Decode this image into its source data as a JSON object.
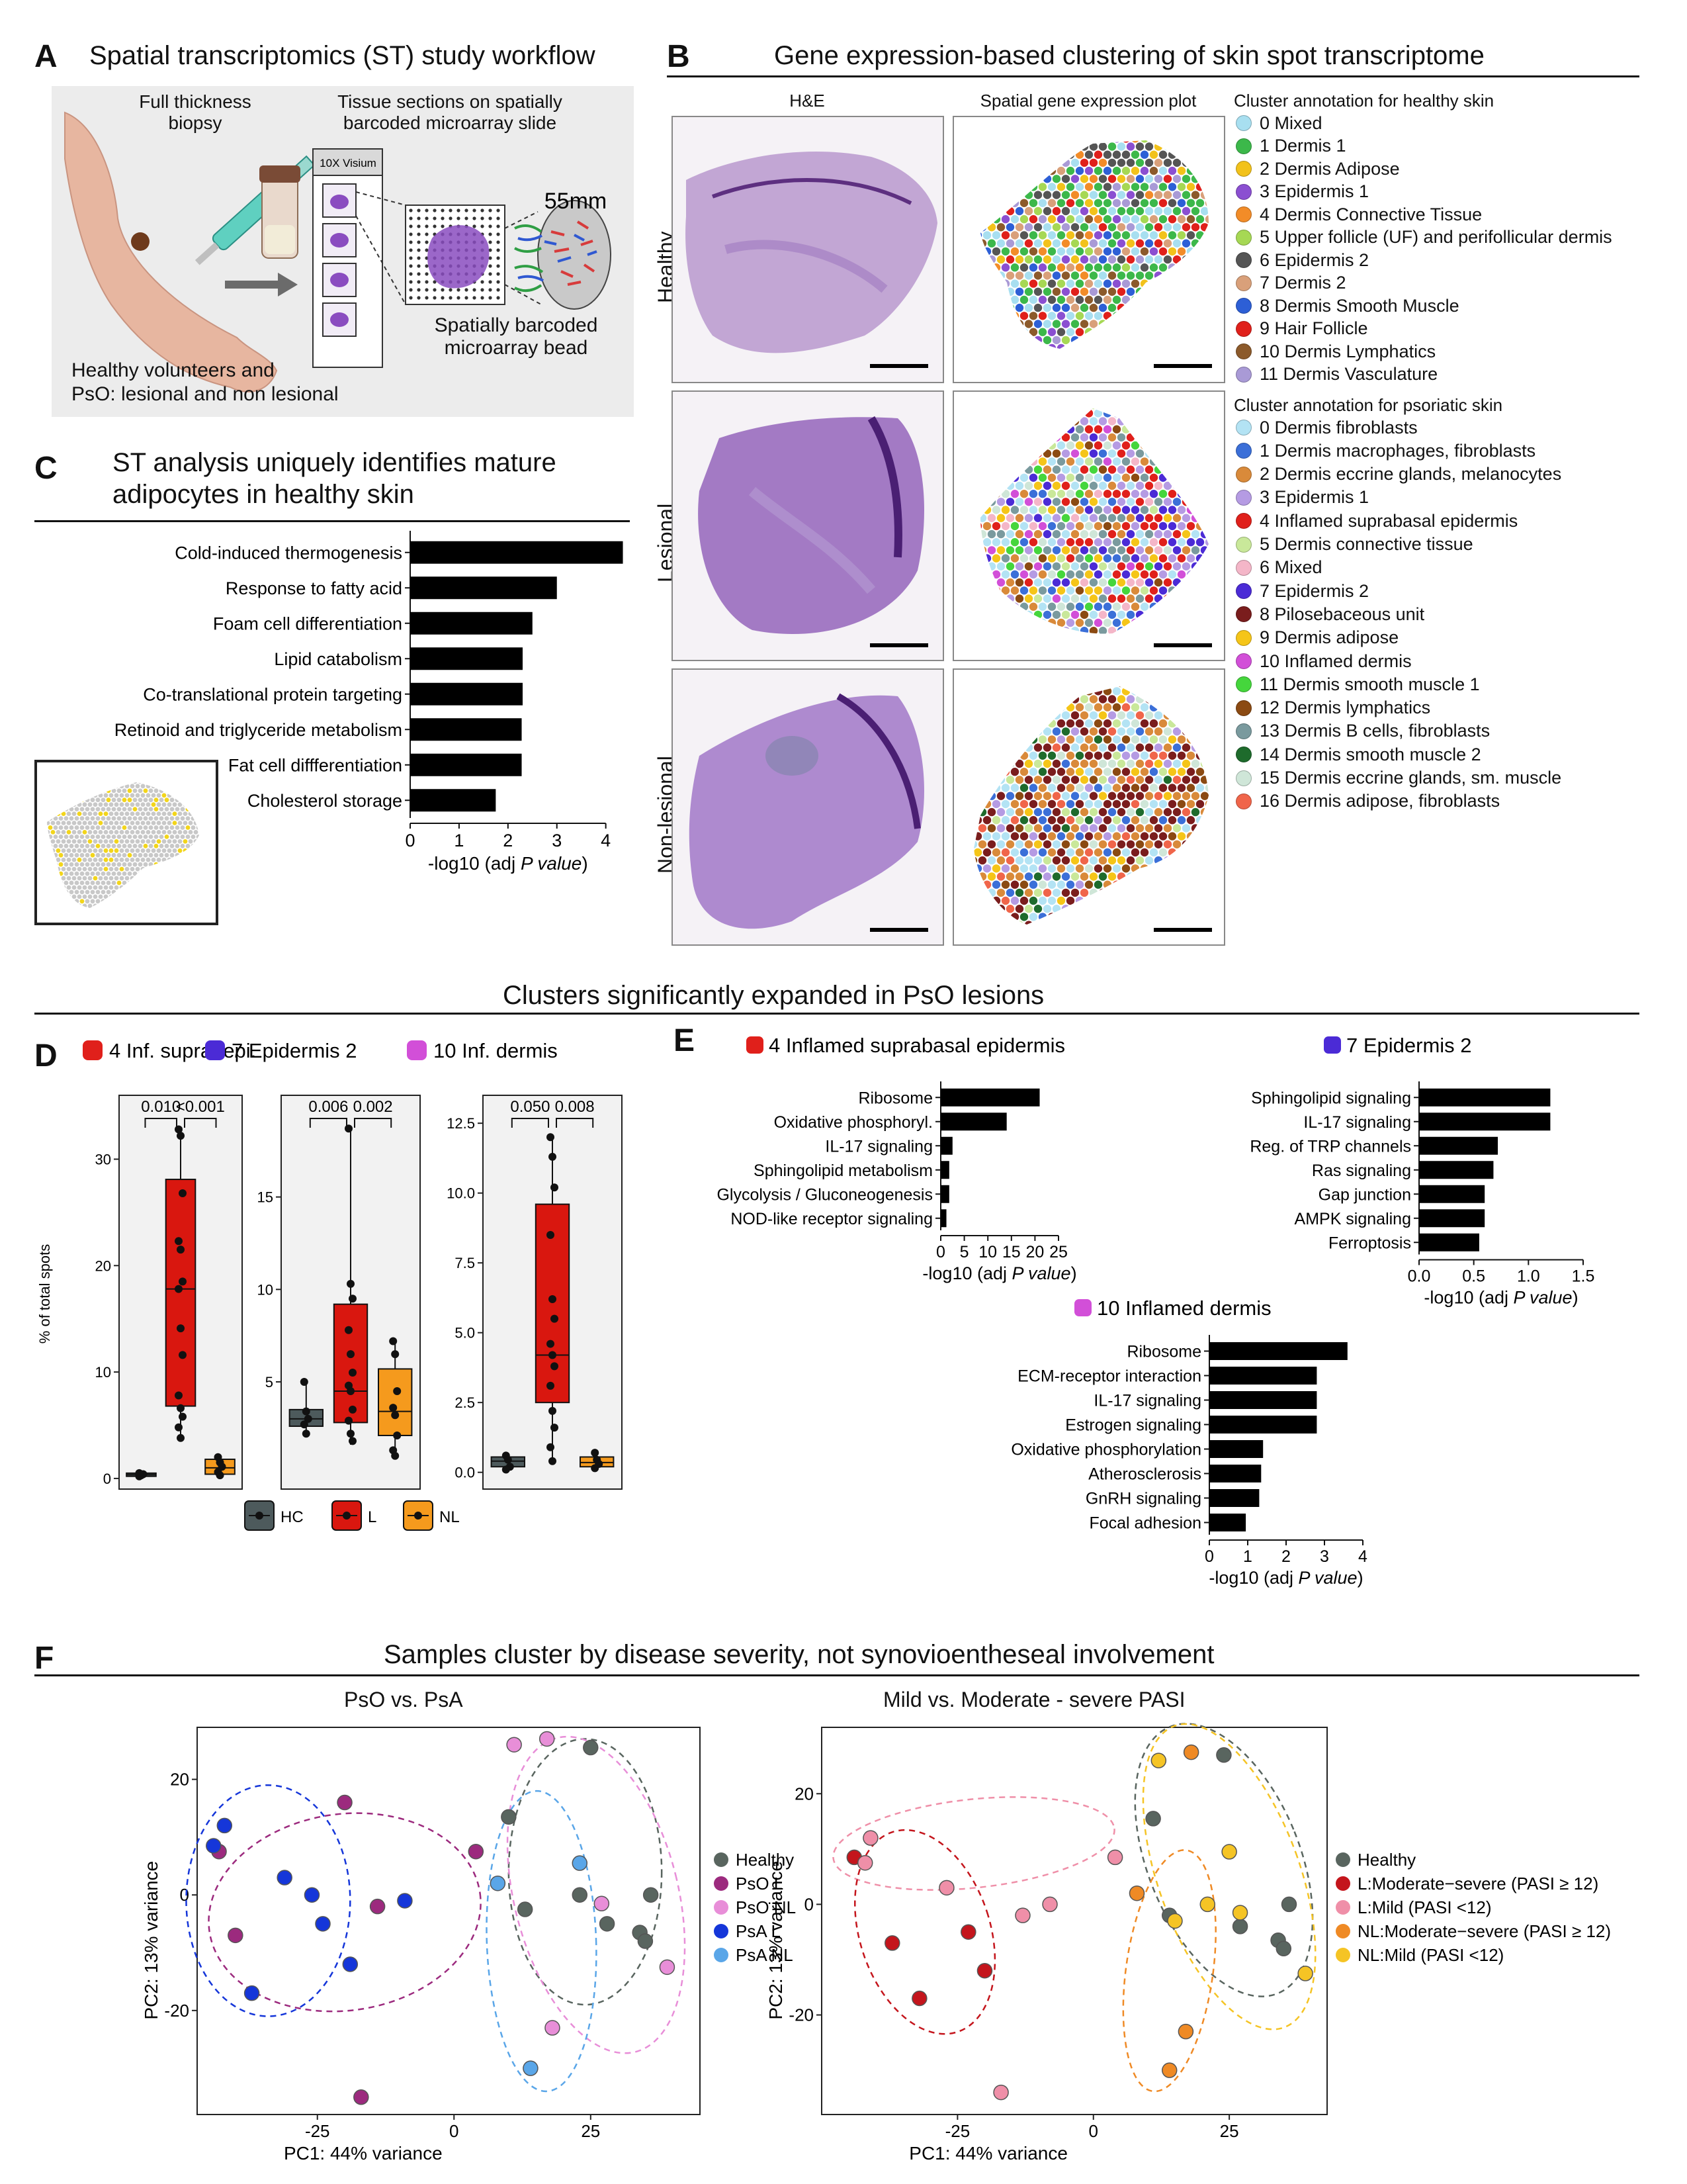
{
  "panelA": {
    "letter": "A",
    "title": "Spatial transcriptomics (ST) study workflow",
    "biopsy_label": "Full thickness\nbiopsy",
    "sections_label": "Tissue sections on spatially\nbarcoded microarray slide",
    "visium_label": "10X Visium",
    "size_label": "55mm",
    "bead_label": "Spatially barcoded\nmicroarray bead",
    "cohort_label": "Healthy volunteers and\nPsO: lesional and non lesional"
  },
  "panelB": {
    "letter": "B",
    "title": "Gene expression-based clustering of skin spot transcriptome",
    "col_he": "H&E",
    "col_spatial": "Spatial gene expression plot",
    "rows": [
      "Healthy",
      "Lesional",
      "Non-lesional"
    ],
    "healthy_legend_title": "Cluster annotation for healthy skin",
    "healthy_clusters": [
      {
        "label": "0 Mixed",
        "color": "#a8dff0"
      },
      {
        "label": "1 Dermis 1",
        "color": "#3cb84a"
      },
      {
        "label": "2 Dermis Adipose",
        "color": "#f2c21b"
      },
      {
        "label": "3 Epidermis 1",
        "color": "#8b4fd1"
      },
      {
        "label": "4 Dermis Connective Tissue",
        "color": "#f28c28"
      },
      {
        "label": "5 Upper follicle (UF) and perifollicular dermis",
        "color": "#a6d854"
      },
      {
        "label": "6 Epidermis 2",
        "color": "#555555"
      },
      {
        "label": "7 Dermis 2",
        "color": "#d9a07a"
      },
      {
        "label": "8 Dermis Smooth Muscle",
        "color": "#2d5fd6"
      },
      {
        "label": "9 Hair Follicle",
        "color": "#e0201b"
      },
      {
        "label": "10 Dermis Lymphatics",
        "color": "#8c5a2b"
      },
      {
        "label": "11 Dermis Vasculature",
        "color": "#a99ad6"
      }
    ],
    "psoriatic_legend_title": "Cluster annotation for psoriatic skin",
    "psoriatic_clusters": [
      {
        "label": "0 Dermis fibroblasts",
        "color": "#b3e3f4"
      },
      {
        "label": "1 Dermis macrophages, fibroblasts",
        "color": "#3b6fd8"
      },
      {
        "label": "2 Dermis eccrine glands, melanocytes",
        "color": "#d98a3a"
      },
      {
        "label": "3 Epidermis 1",
        "color": "#b59be3"
      },
      {
        "label": "4 Inflamed suprabasal epidermis",
        "color": "#e0201b"
      },
      {
        "label": "5 Dermis connective tissue",
        "color": "#c9e89a"
      },
      {
        "label": "6 Mixed",
        "color": "#f4b6c8"
      },
      {
        "label": "7 Epidermis 2",
        "color": "#4b2bd6"
      },
      {
        "label": "8 Pilosebaceous unit",
        "color": "#7a1d1d"
      },
      {
        "label": "9 Dermis adipose",
        "color": "#f5c518"
      },
      {
        "label": "10 Inflamed dermis",
        "color": "#d24fd8"
      },
      {
        "label": "11 Dermis smooth muscle 1",
        "color": "#45d63c"
      },
      {
        "label": "12 Dermis lymphatics",
        "color": "#8b4a12"
      },
      {
        "label": "13 Dermis B cells, fibroblasts",
        "color": "#7a9a9e"
      },
      {
        "label": "14 Dermis smooth muscle 2",
        "color": "#1e6b2c"
      },
      {
        "label": "15 Dermis eccrine glands, sm. muscle",
        "color": "#cfe6d8"
      },
      {
        "label": "16 Dermis adipose, fibroblasts",
        "color": "#f0654a"
      }
    ]
  },
  "panelC": {
    "letter": "C",
    "title": "ST analysis uniquely identifies mature\nadipocytes in healthy skin"
  },
  "section_DE_title": "Clusters significantly expanded in PsO lesions",
  "panelD": {
    "letter": "D",
    "ylabel": "% of total spots",
    "groups": [
      {
        "label": "4 Inf. supra. epi.",
        "color": "#e0201b",
        "p1": "0.010",
        "p2": "<0.001"
      },
      {
        "label": "7 Epidermis 2",
        "color": "#4b2bd6",
        "p1": "0.006",
        "p2": "0.002"
      },
      {
        "label": "10 Inf. dermis",
        "color": "#d24fd8",
        "p1": "0.050",
        "p2": "0.008"
      }
    ],
    "legend": [
      {
        "label": "HC",
        "color": "#4d5a5c"
      },
      {
        "label": "L",
        "color": "#d9170f"
      },
      {
        "label": "NL",
        "color": "#f59a1d"
      }
    ]
  },
  "panelE": {
    "letter": "E",
    "xlabel_prefix": "-log10 (adj ",
    "xlabel_p": "P value",
    "xlabel_suffix": ")"
  },
  "section_F_title": "Samples cluster by disease severity, not synovioentheseal involvement",
  "panelF": {
    "letter": "F",
    "left_title": "PsO vs. PsA",
    "right_title": "Mild vs. Moderate - severe PASI",
    "xlabel": "PC1: 44% variance",
    "ylabel": "PC2: 13% variance",
    "left_legend": [
      {
        "label": "Healthy",
        "color": "#59655f"
      },
      {
        "label": "PsO L",
        "color": "#9c2a7e"
      },
      {
        "label": "PsO NL",
        "color": "#e88ed8"
      },
      {
        "label": "PsA L",
        "color": "#1536d9"
      },
      {
        "label": "PsA NL",
        "color": "#5aa6e8"
      }
    ],
    "right_legend": [
      {
        "label": "Healthy",
        "color": "#59655f"
      },
      {
        "label": "L:Moderate−severe (PASI ≥ 12)",
        "color": "#c4151c"
      },
      {
        "label": "L:Mild (PASI <12)",
        "color": "#ef8fa8"
      },
      {
        "label": "NL:Moderate−severe (PASI ≥ 12)",
        "color": "#ef8a25"
      },
      {
        "label": "NL:Mild (PASI <12)",
        "color": "#f5c425"
      }
    ]
  },
  "chart_data": [
    {
      "id": "C",
      "type": "bar",
      "orientation": "horizontal",
      "categories": [
        "Cold-induced thermogenesis",
        "Response to fatty acid",
        "Foam cell differentiation",
        "Lipid catabolism",
        "Co-translational protein targeting",
        "Retinoid and triglyceride metabolism",
        "Fat cell diffferentiation",
        "Cholesterol storage"
      ],
      "values": [
        4.35,
        3.0,
        2.5,
        2.3,
        2.3,
        2.28,
        2.28,
        1.75
      ],
      "xlim": [
        0,
        4.6
      ],
      "xticks": [
        0,
        1,
        2,
        3,
        4
      ],
      "xlabel_prefix": "-log10 (adj ",
      "xlabel_p": "P value",
      "xlabel_suffix": ")"
    },
    {
      "id": "D1",
      "type": "box",
      "title": "4 Inf. supra. epi.",
      "ylim": [
        -1,
        36
      ],
      "yticks": [
        0,
        10,
        20,
        30
      ],
      "boxes": [
        {
          "name": "HC",
          "q1": 0.2,
          "median": 0.35,
          "q3": 0.5,
          "min": 0.1,
          "max": 0.6,
          "points": [
            0.2,
            0.3,
            0.4,
            0.5
          ]
        },
        {
          "name": "L",
          "q1": 6.8,
          "median": 17.8,
          "q3": 28.1,
          "min": 3.8,
          "max": 32.8,
          "points": [
            32.8,
            32.2,
            26.8,
            22.3,
            21.5,
            18.5,
            17.8,
            14.1,
            11.6,
            7.8,
            6.6,
            5.8,
            4.8,
            3.8
          ]
        },
        {
          "name": "NL",
          "q1": 0.4,
          "median": 1.0,
          "q3": 1.8,
          "min": 0.2,
          "max": 2.2,
          "points": [
            2.0,
            1.5,
            1.1,
            0.6,
            0.3
          ]
        }
      ]
    },
    {
      "id": "D2",
      "type": "box",
      "title": "7 Epidermis 2",
      "ylim": [
        -0.8,
        20.5
      ],
      "yticks": [
        5,
        10,
        15
      ],
      "boxes": [
        {
          "name": "HC",
          "q1": 2.6,
          "median": 3.0,
          "q3": 3.5,
          "min": 2.0,
          "max": 5.0,
          "points": [
            5.0,
            3.4,
            3.0,
            2.7,
            2.2
          ]
        },
        {
          "name": "L",
          "q1": 2.8,
          "median": 4.5,
          "q3": 9.2,
          "min": 1.6,
          "max": 18.7,
          "points": [
            18.7,
            10.3,
            9.5,
            7.8,
            6.5,
            5.5,
            4.8,
            4.5,
            3.5,
            2.9,
            2.2,
            1.8
          ]
        },
        {
          "name": "NL",
          "q1": 2.1,
          "median": 3.4,
          "q3": 5.7,
          "min": 0.9,
          "max": 7.2,
          "points": [
            7.2,
            6.5,
            4.5,
            3.6,
            3.2,
            2.1,
            1.3,
            1.0
          ]
        }
      ]
    },
    {
      "id": "D3",
      "type": "box",
      "title": "10 Inf. dermis",
      "ylim": [
        -0.6,
        13.5
      ],
      "yticks": [
        0.0,
        2.5,
        5.0,
        7.5,
        10.0,
        12.5
      ],
      "ytick_labels": [
        "0.0",
        "2.5",
        "5.0",
        "7.5",
        "10.0",
        "12.5"
      ],
      "boxes": [
        {
          "name": "HC",
          "q1": 0.2,
          "median": 0.4,
          "q3": 0.55,
          "min": 0.05,
          "max": 0.7,
          "points": [
            0.6,
            0.45,
            0.2,
            0.1
          ]
        },
        {
          "name": "L",
          "q1": 2.5,
          "median": 4.2,
          "q3": 9.6,
          "min": 0.3,
          "max": 12.0,
          "points": [
            12.0,
            11.3,
            10.2,
            8.5,
            6.2,
            5.5,
            4.6,
            4.2,
            3.8,
            3.1,
            2.2,
            1.6,
            0.9,
            0.4
          ]
        },
        {
          "name": "NL",
          "q1": 0.2,
          "median": 0.35,
          "q3": 0.55,
          "min": 0.1,
          "max": 0.75,
          "points": [
            0.7,
            0.45,
            0.3,
            0.15
          ]
        }
      ]
    },
    {
      "id": "E1",
      "type": "bar",
      "orientation": "horizontal",
      "title": "4 Inflamed suprabasal epidermis",
      "title_color": "#e0201b",
      "categories": [
        "Ribosome",
        "Oxidative phosphoryl.",
        "IL-17 signaling",
        "Sphingolipid metabolism",
        "Glycolysis / Gluconeogenesis",
        "NOD-like receptor signaling"
      ],
      "values": [
        21,
        14,
        2.5,
        1.8,
        1.8,
        1.2
      ],
      "xlim": [
        0,
        25
      ],
      "xticks": [
        0,
        5,
        10,
        15,
        20,
        25
      ]
    },
    {
      "id": "E2",
      "type": "bar",
      "orientation": "horizontal",
      "title": "7 Epidermis 2",
      "title_color": "#4b2bd6",
      "categories": [
        "Sphingolipid signaling",
        "IL-17 signaling",
        "Reg. of TRP channels",
        "Ras signaling",
        "Gap junction",
        "AMPK signaling",
        "Ferroptosis"
      ],
      "values": [
        1.2,
        1.2,
        0.72,
        0.68,
        0.6,
        0.6,
        0.55
      ],
      "xlim": [
        0,
        1.5
      ],
      "xticks": [
        0.0,
        0.5,
        1.0,
        1.5
      ],
      "xtick_labels": [
        "0.0",
        "0.5",
        "1.0",
        "1.5"
      ]
    },
    {
      "id": "E3",
      "type": "bar",
      "orientation": "horizontal",
      "title": "10 Inflamed dermis",
      "title_color": "#d24fd8",
      "categories": [
        "Ribosome",
        "ECM-receptor interaction",
        "IL-17 signaling",
        "Estrogen signaling",
        "Oxidative phosphorylation",
        "Atherosclerosis",
        "GnRH signaling",
        "Focal adhesion"
      ],
      "values": [
        3.6,
        2.8,
        2.8,
        2.8,
        1.4,
        1.35,
        1.3,
        0.95
      ],
      "xlim": [
        0,
        4
      ],
      "xticks": [
        0,
        1,
        2,
        3,
        4
      ]
    },
    {
      "id": "F1",
      "type": "scatter",
      "title": "PsO vs. PsA",
      "xlabel": "PC1: 44% variance",
      "ylabel": "PC2: 13% variance",
      "xlim": [
        -47,
        45
      ],
      "ylim": [
        -38,
        29
      ],
      "xticks": [
        -25,
        0,
        25
      ],
      "yticks": [
        -20,
        0,
        20
      ],
      "series": [
        {
          "name": "Healthy",
          "color": "#59655f",
          "points": [
            [
              25,
              25.5
            ],
            [
              10,
              13.5
            ],
            [
              23,
              0
            ],
            [
              13,
              -2.5
            ],
            [
              28,
              -5
            ],
            [
              34,
              -6.5
            ],
            [
              36,
              0
            ],
            [
              35,
              -8
            ]
          ]
        },
        {
          "name": "PsO L",
          "color": "#9c2a7e",
          "points": [
            [
              -20,
              16
            ],
            [
              -43,
              7.5
            ],
            [
              -40,
              -7
            ],
            [
              -14,
              -2
            ],
            [
              4,
              7.5
            ],
            [
              -17,
              -35
            ]
          ]
        },
        {
          "name": "PsO NL",
          "color": "#e88ed8",
          "points": [
            [
              11,
              26
            ],
            [
              17,
              27
            ],
            [
              27,
              -1.5
            ],
            [
              18,
              -23
            ],
            [
              39,
              -12.5
            ]
          ]
        },
        {
          "name": "PsA L",
          "color": "#1536d9",
          "points": [
            [
              -44,
              8.5
            ],
            [
              -42,
              12
            ],
            [
              -31,
              3
            ],
            [
              -26,
              0
            ],
            [
              -24,
              -5
            ],
            [
              -19,
              -12
            ],
            [
              -9,
              -1
            ],
            [
              -37,
              -17
            ]
          ]
        },
        {
          "name": "PsA NL",
          "color": "#5aa6e8",
          "points": [
            [
              23,
              5.5
            ],
            [
              8,
              2
            ],
            [
              14,
              -30
            ]
          ]
        }
      ]
    },
    {
      "id": "F2",
      "type": "scatter",
      "title": "Mild vs. Moderate - severe PASI",
      "xlabel": "PC1: 44% variance",
      "ylabel": "PC2: 13% variance",
      "xlim": [
        -50,
        43
      ],
      "ylim": [
        -38,
        32
      ],
      "xticks": [
        -25,
        0,
        25
      ],
      "yticks": [
        -20,
        0,
        20
      ],
      "series": [
        {
          "name": "Healthy",
          "color": "#59655f",
          "points": [
            [
              24,
              27
            ],
            [
              11,
              15.5
            ],
            [
              14,
              -2
            ],
            [
              27,
              -4
            ],
            [
              34,
              -6.5
            ],
            [
              36,
              0
            ],
            [
              35,
              -8
            ]
          ]
        },
        {
          "name": "L:Moderate−severe (PASI ≥ 12)",
          "color": "#c4151c",
          "points": [
            [
              -44,
              8.5
            ],
            [
              -37,
              -7
            ],
            [
              -23,
              -5
            ],
            [
              -20,
              -12
            ],
            [
              -32,
              -17
            ]
          ]
        },
        {
          "name": "L:Mild (PASI <12)",
          "color": "#ef8fa8",
          "points": [
            [
              -41,
              12
            ],
            [
              -42,
              7.5
            ],
            [
              -27,
              3
            ],
            [
              -13,
              -2
            ],
            [
              -8,
              0
            ],
            [
              4,
              8.5
            ],
            [
              -17,
              -34
            ]
          ]
        },
        {
          "name": "NL:Moderate−severe (PASI ≥ 12)",
          "color": "#ef8a25",
          "points": [
            [
              18,
              27.5
            ],
            [
              8,
              2
            ],
            [
              17,
              -23
            ],
            [
              14,
              -30
            ]
          ]
        },
        {
          "name": "NL:Mild (PASI <12)",
          "color": "#f5c425",
          "points": [
            [
              12,
              26
            ],
            [
              25,
              9.5
            ],
            [
              15,
              -3
            ],
            [
              21,
              0
            ],
            [
              27,
              -1.5
            ],
            [
              39,
              -12.5
            ]
          ]
        }
      ]
    }
  ]
}
